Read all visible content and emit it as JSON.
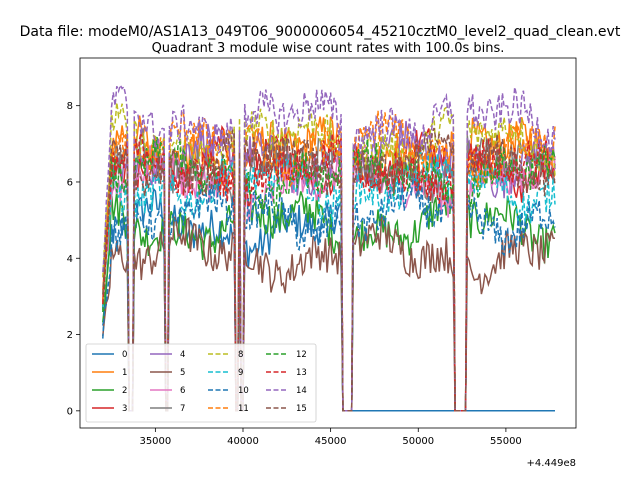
{
  "chart_data": {
    "type": "line",
    "suptitle": "Data file: modeM0/AS1A13_049T06_9000006054_45210cztM0_level2_quad_clean.evt",
    "title": "Quadrant 3 module wise count rates with 100.0s bins.",
    "xlabel": "",
    "ylabel": "",
    "x_offset_label": "+4.449e8",
    "xlim": [
      30700,
      59000
    ],
    "ylim": [
      -0.45,
      9.25
    ],
    "x_ticks": [
      35000,
      40000,
      45000,
      50000,
      55000
    ],
    "x_tick_labels": [
      "35000",
      "40000",
      "45000",
      "50000",
      "55000"
    ],
    "y_ticks": [
      0,
      2,
      4,
      6,
      8
    ],
    "y_tick_labels": [
      "0",
      "2",
      "4",
      "6",
      "8"
    ],
    "bin_width": 100,
    "x_range": [
      32000,
      57800
    ],
    "gaps": [
      [
        33500,
        33700
      ],
      [
        35600,
        35750
      ],
      [
        39600,
        39750
      ],
      [
        39850,
        40050
      ],
      [
        45700,
        46250
      ],
      [
        52100,
        52750
      ]
    ],
    "late_zero_series": [
      "0"
    ],
    "legend": {
      "location": "lower-left",
      "columns": 4
    },
    "series": [
      {
        "name": "0",
        "color": "#1f77b4",
        "dash": "solid",
        "level": 4.8
      },
      {
        "name": "1",
        "color": "#ff7f0e",
        "dash": "solid",
        "level": 6.8
      },
      {
        "name": "2",
        "color": "#2ca02c",
        "dash": "solid",
        "level": 4.9
      },
      {
        "name": "3",
        "color": "#d62728",
        "dash": "solid",
        "level": 6.5
      },
      {
        "name": "4",
        "color": "#9467bd",
        "dash": "solid",
        "level": 6.6
      },
      {
        "name": "5",
        "color": "#8c564b",
        "dash": "solid",
        "level": 4.1
      },
      {
        "name": "6",
        "color": "#e377c2",
        "dash": "solid",
        "level": 6.0
      },
      {
        "name": "7",
        "color": "#7f7f7f",
        "dash": "solid",
        "level": 6.4
      },
      {
        "name": "8",
        "color": "#bcbd22",
        "dash": "dashed",
        "level": 7.1
      },
      {
        "name": "9",
        "color": "#17becf",
        "dash": "dashed",
        "level": 5.9
      },
      {
        "name": "10",
        "color": "#1f77b4",
        "dash": "dashed",
        "level": 5.1
      },
      {
        "name": "11",
        "color": "#ff7f0e",
        "dash": "dashed",
        "level": 6.9
      },
      {
        "name": "12",
        "color": "#2ca02c",
        "dash": "dashed",
        "level": 6.2
      },
      {
        "name": "13",
        "color": "#d62728",
        "dash": "dashed",
        "level": 6.3
      },
      {
        "name": "14",
        "color": "#9467bd",
        "dash": "dashed",
        "level": 7.6
      },
      {
        "name": "15",
        "color": "#8c564b",
        "dash": "dashed",
        "level": 6.5
      }
    ]
  }
}
